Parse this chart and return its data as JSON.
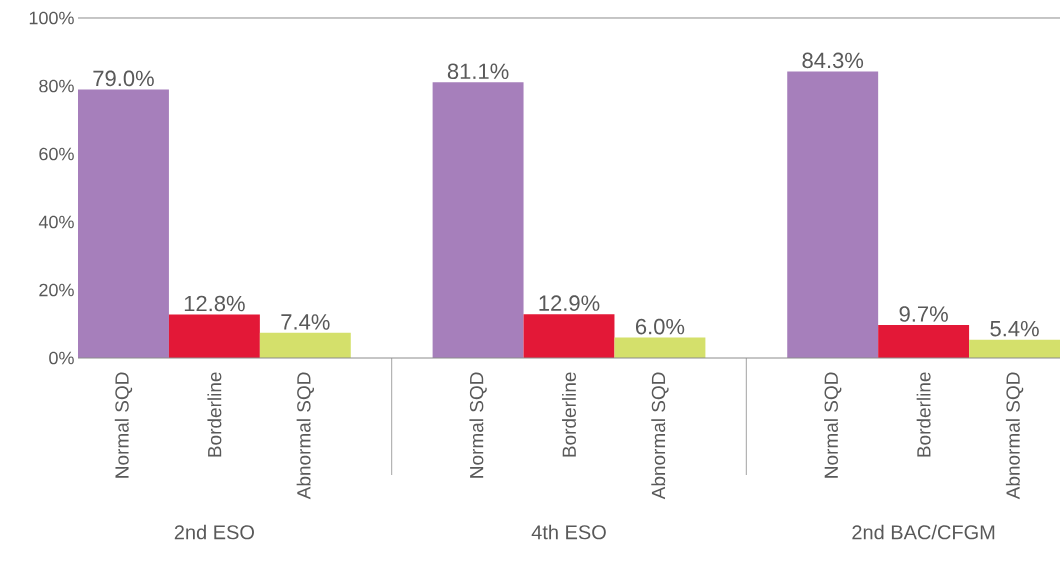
{
  "chart_data": {
    "type": "bar",
    "categories": [
      "Normal SQD",
      "Borderline",
      "Abnormal SQD",
      "Normal SQD",
      "Borderline",
      "Abnormal SQD",
      "Normal SQD",
      "Borderline",
      "Abnormal SQD"
    ],
    "values": [
      79.0,
      12.8,
      7.4,
      81.1,
      12.9,
      6.0,
      84.3,
      9.7,
      5.4
    ],
    "value_labels": [
      "79.0%",
      "12.8%",
      "7.4%",
      "81.1%",
      "12.9%",
      "6.0%",
      "84.3%",
      "9.7%",
      "5.4%"
    ],
    "colors": [
      "#a67fbb",
      "#e31837",
      "#d4e06b",
      "#a67fbb",
      "#e31837",
      "#d4e06b",
      "#a67fbb",
      "#e31837",
      "#d4e06b"
    ],
    "ylim": [
      0,
      100
    ],
    "yticks": [
      {
        "value": 0,
        "label": "0%"
      },
      {
        "value": 20,
        "label": "20%"
      },
      {
        "value": 40,
        "label": "40%"
      },
      {
        "value": 60,
        "label": "60%"
      },
      {
        "value": 80,
        "label": "80%"
      },
      {
        "value": 100,
        "label": "100%"
      }
    ],
    "annotations": [
      "2nd ESO",
      "4th ESO",
      "2nd BAC/CFGM"
    ],
    "grid": false
  }
}
